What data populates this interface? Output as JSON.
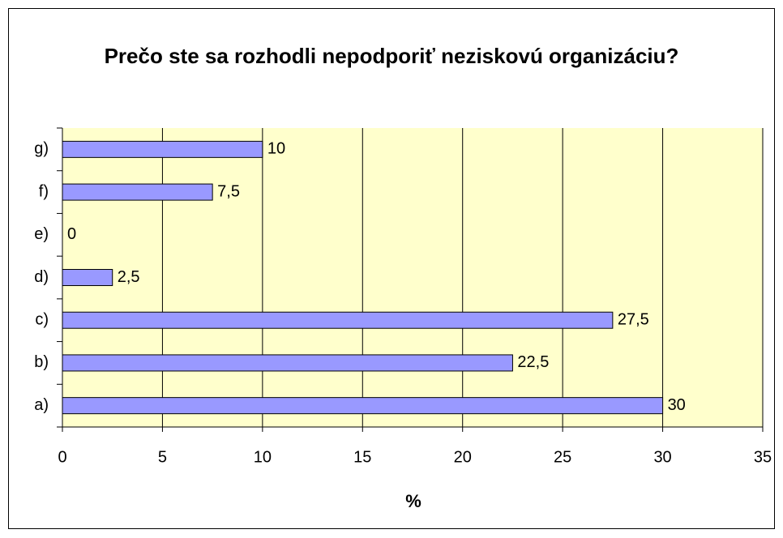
{
  "chart_data": {
    "type": "bar",
    "orientation": "horizontal",
    "title": "Prečo ste sa rozhodli nepodporiť neziskovú organizáciu?",
    "x_label": "%",
    "categories": [
      "a)",
      "b)",
      "c)",
      "d)",
      "e)",
      "f)",
      "g)"
    ],
    "values": [
      30,
      22.5,
      27.5,
      2.5,
      0,
      7.5,
      10
    ],
    "value_labels": [
      "30",
      "22,5",
      "27,5",
      "2,5",
      "0",
      "7,5",
      "10"
    ],
    "color": "#9999ff",
    "xlim": [
      0,
      35
    ],
    "xticks": [
      0,
      5,
      10,
      15,
      20,
      25,
      30,
      35
    ],
    "grid": true
  }
}
